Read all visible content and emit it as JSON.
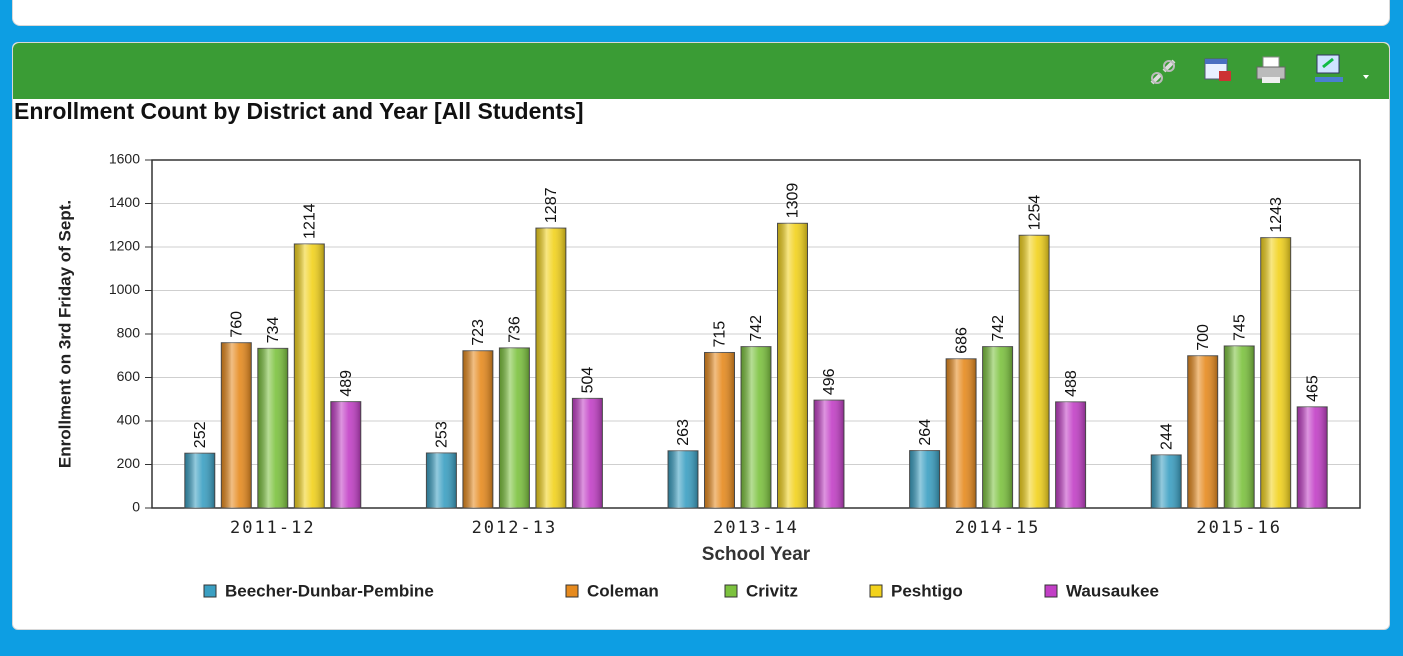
{
  "chart_data": {
    "type": "bar",
    "title": "Enrollment Count by District and Year [All Students]",
    "x_label": "School Year",
    "y_label": "Enrollment on 3rd Friday of Sept.",
    "categories": [
      "2011-12",
      "2012-13",
      "2013-14",
      "2014-15",
      "2015-16"
    ],
    "series": [
      {
        "name": "Beecher-Dunbar-Pembine",
        "color": "#3a9fc2",
        "values": [
          252,
          253,
          263,
          264,
          244
        ]
      },
      {
        "name": "Coleman",
        "color": "#e68a1e",
        "values": [
          760,
          723,
          715,
          686,
          700
        ]
      },
      {
        "name": "Crivitz",
        "color": "#7cc23e",
        "values": [
          734,
          736,
          742,
          742,
          745
        ]
      },
      {
        "name": "Peshtigo",
        "color": "#f2d21c",
        "values": [
          1214,
          1287,
          1309,
          1254,
          1243
        ]
      },
      {
        "name": "Wausaukee",
        "color": "#c23fc6",
        "values": [
          489,
          504,
          496,
          488,
          465
        ]
      }
    ],
    "ylim": [
      0,
      1600
    ],
    "yticks": [
      0,
      200,
      400,
      600,
      800,
      1000,
      1200,
      1400,
      1600
    ],
    "grid": true
  }
}
